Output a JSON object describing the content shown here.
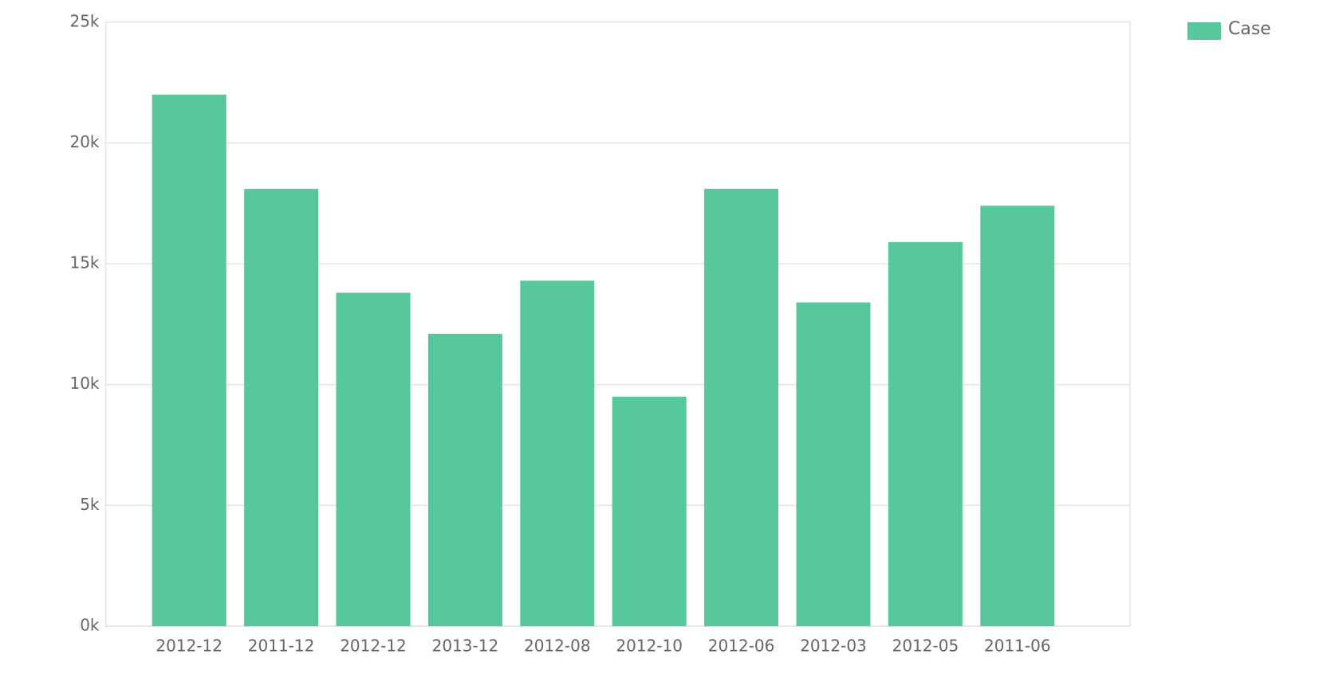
{
  "chart_data": {
    "type": "bar",
    "categories": [
      "2012-12",
      "2011-12",
      "2012-12",
      "2013-12",
      "2012-08",
      "2012-10",
      "2012-06",
      "2012-03",
      "2012-05",
      "2011-06"
    ],
    "series": [
      {
        "name": "Case",
        "color": "#57c89b",
        "values": [
          22000,
          18100,
          13800,
          12100,
          14300,
          9500,
          18100,
          13400,
          15900,
          17400
        ]
      }
    ],
    "ylim": [
      0,
      25000
    ],
    "yticks": [
      {
        "value": 0,
        "label": "0k"
      },
      {
        "value": 5000,
        "label": "5k"
      },
      {
        "value": 10000,
        "label": "10k"
      },
      {
        "value": 15000,
        "label": "15k"
      },
      {
        "value": 20000,
        "label": "20k"
      },
      {
        "value": 25000,
        "label": "25k"
      }
    ],
    "grid": true,
    "legend": "top-right"
  }
}
